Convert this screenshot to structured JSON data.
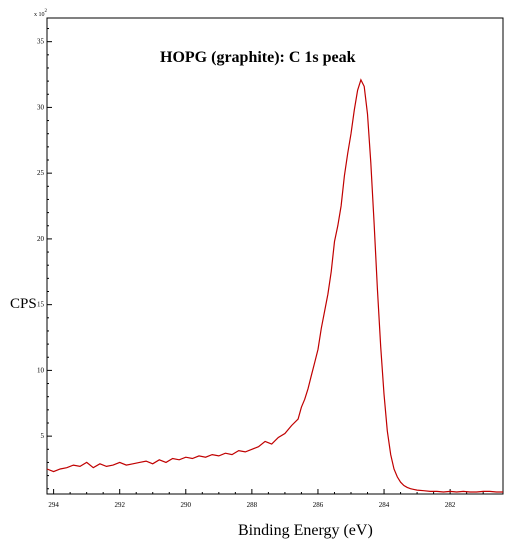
{
  "chart_data": {
    "type": "line",
    "title": "HOPG (graphite):  C 1s peak",
    "xlabel": "Binding Energy (eV)",
    "ylabel": "CPS",
    "y_multiplier": {
      "base": "x 10",
      "exponent": "2"
    },
    "x_reversed": true,
    "xlim": [
      294.2,
      280.4
    ],
    "ylim": [
      0.6,
      36.8
    ],
    "x_ticks": [
      294,
      292,
      290,
      288,
      286,
      284,
      282
    ],
    "y_ticks": [
      5,
      10,
      15,
      20,
      25,
      30,
      35
    ],
    "x_tick_labels": [
      "294",
      "292",
      "290",
      "288",
      "286",
      "284",
      "282"
    ],
    "y_tick_labels": [
      "5",
      "10",
      "15",
      "20",
      "25",
      "30",
      "35"
    ],
    "grid": false,
    "series": [
      {
        "color": "#c00000",
        "x": [
          294.2,
          294.0,
          293.8,
          293.6,
          293.4,
          293.2,
          293.0,
          292.8,
          292.6,
          292.4,
          292.2,
          292.0,
          291.8,
          291.6,
          291.4,
          291.2,
          291.0,
          290.8,
          290.6,
          290.4,
          290.2,
          290.0,
          289.8,
          289.6,
          289.4,
          289.2,
          289.0,
          288.8,
          288.6,
          288.4,
          288.2,
          288.0,
          287.8,
          287.6,
          287.4,
          287.2,
          287.0,
          286.8,
          286.6,
          286.5,
          286.4,
          286.3,
          286.2,
          286.1,
          286.0,
          285.9,
          285.8,
          285.7,
          285.6,
          285.5,
          285.4,
          285.3,
          285.2,
          285.1,
          285.0,
          284.9,
          284.8,
          284.7,
          284.6,
          284.5,
          284.4,
          284.3,
          284.2,
          284.1,
          284.0,
          283.9,
          283.8,
          283.7,
          283.6,
          283.5,
          283.4,
          283.3,
          283.2,
          283.1,
          283.0,
          282.8,
          282.6,
          282.4,
          282.2,
          282.0,
          281.8,
          281.6,
          281.4,
          281.2,
          281.0,
          280.8,
          280.6,
          280.4
        ],
        "y": [
          2.5,
          2.3,
          2.5,
          2.6,
          2.8,
          2.7,
          3.0,
          2.6,
          2.9,
          2.7,
          2.8,
          3.0,
          2.8,
          2.9,
          3.0,
          3.1,
          2.9,
          3.2,
          3.0,
          3.3,
          3.2,
          3.4,
          3.3,
          3.5,
          3.4,
          3.6,
          3.5,
          3.7,
          3.6,
          3.9,
          3.8,
          4.0,
          4.2,
          4.6,
          4.4,
          4.9,
          5.2,
          5.8,
          6.3,
          7.2,
          7.8,
          8.6,
          9.6,
          10.6,
          11.6,
          13.2,
          14.5,
          15.8,
          17.5,
          19.8,
          21.0,
          22.5,
          24.8,
          26.5,
          28.0,
          29.8,
          31.3,
          32.1,
          31.6,
          29.5,
          25.8,
          21.2,
          16.2,
          11.8,
          8.2,
          5.4,
          3.6,
          2.5,
          1.9,
          1.5,
          1.25,
          1.1,
          1.0,
          0.95,
          0.9,
          0.85,
          0.8,
          0.8,
          0.75,
          0.8,
          0.75,
          0.8,
          0.75,
          0.75,
          0.8,
          0.8,
          0.75,
          0.75
        ]
      }
    ]
  }
}
